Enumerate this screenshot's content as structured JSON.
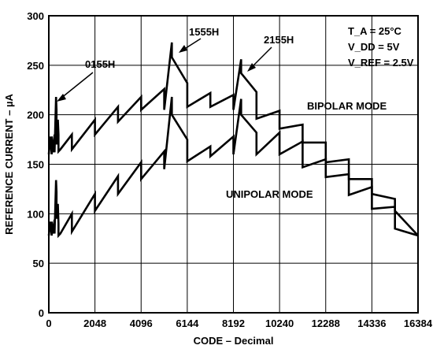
{
  "chart_data": {
    "type": "line",
    "xlabel": "CODE – Decimal",
    "ylabel": "REFERENCE CURRENT – µA",
    "xlim": [
      0,
      16384
    ],
    "ylim": [
      0,
      300
    ],
    "x_ticks": [
      0,
      2048,
      4096,
      6144,
      8192,
      10240,
      12288,
      14336,
      16384
    ],
    "y_ticks": [
      0,
      50,
      100,
      150,
      200,
      250,
      300
    ],
    "grid": true,
    "conditions": [
      "T_A = 25°C",
      "V_DD = 5V",
      "V_REF = 2.5V"
    ],
    "series": [
      {
        "name": "BIPOLAR MODE",
        "x": [
          0,
          64,
          128,
          128,
          192,
          256,
          256,
          320,
          341,
          341,
          400,
          430,
          430,
          512,
          1024,
          1024,
          2048,
          2048,
          3072,
          3072,
          4096,
          4096,
          5120,
          5120,
          5461,
          5461,
          6144,
          6144,
          7168,
          7168,
          8192,
          8192,
          8533,
          8533,
          9216,
          9216,
          10240,
          10240,
          11264,
          11264,
          12288,
          12288,
          13312,
          13312,
          14336,
          14336,
          15360,
          15360,
          16384
        ],
        "values": [
          160,
          178,
          160,
          178,
          162,
          180,
          162,
          218,
          205,
          170,
          195,
          180,
          163,
          165,
          180,
          165,
          195,
          180,
          208,
          193,
          218,
          205,
          226,
          205,
          273,
          258,
          232,
          208,
          222,
          208,
          220,
          205,
          256,
          242,
          223,
          196,
          204,
          186,
          190,
          172,
          172,
          152,
          155,
          135,
          135,
          120,
          115,
          103,
          78
        ]
      },
      {
        "name": "UNIPOLAR MODE",
        "x": [
          0,
          64,
          128,
          128,
          192,
          256,
          256,
          320,
          341,
          341,
          400,
          430,
          430,
          512,
          1024,
          1024,
          2048,
          2048,
          3072,
          3072,
          4096,
          4096,
          5120,
          5120,
          5461,
          5461,
          6144,
          6144,
          7168,
          7168,
          8192,
          8192,
          8533,
          8533,
          9216,
          9216,
          10240,
          10240,
          11264,
          11264,
          12288,
          12288,
          13312,
          13312,
          14336,
          14336,
          15360,
          15360,
          16384
        ],
        "values": [
          78,
          92,
          78,
          92,
          80,
          94,
          80,
          134,
          122,
          95,
          110,
          90,
          78,
          80,
          100,
          82,
          120,
          103,
          138,
          120,
          152,
          135,
          163,
          145,
          218,
          200,
          175,
          153,
          168,
          158,
          178,
          160,
          216,
          200,
          182,
          160,
          182,
          160,
          173,
          147,
          155,
          137,
          140,
          119,
          127,
          105,
          107,
          85,
          78
        ]
      }
    ],
    "annotations": [
      "0155H",
      "1555H",
      "2155H",
      "BIPOLAR MODE",
      "UNIPOLAR MODE"
    ]
  }
}
